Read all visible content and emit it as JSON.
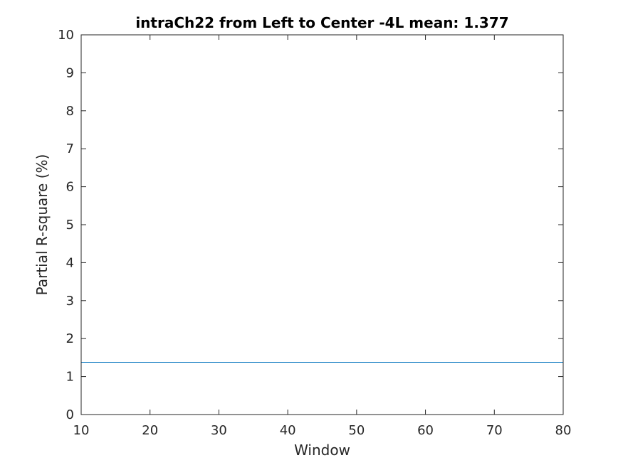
{
  "chart_data": {
    "type": "line",
    "title": "intraCh22 from Left to Center -4L mean: 1.377",
    "xlabel": "Window",
    "ylabel": "Partial R-square (%)",
    "xlim": [
      10,
      80
    ],
    "ylim": [
      0,
      10
    ],
    "xticks": [
      10,
      20,
      30,
      40,
      50,
      60,
      70,
      80
    ],
    "yticks": [
      0,
      1,
      2,
      3,
      4,
      5,
      6,
      7,
      8,
      9,
      10
    ],
    "grid": false,
    "series": [
      {
        "color": "#0072BD",
        "x": [
          10,
          80
        ],
        "y": [
          1.377,
          1.377
        ]
      }
    ]
  }
}
